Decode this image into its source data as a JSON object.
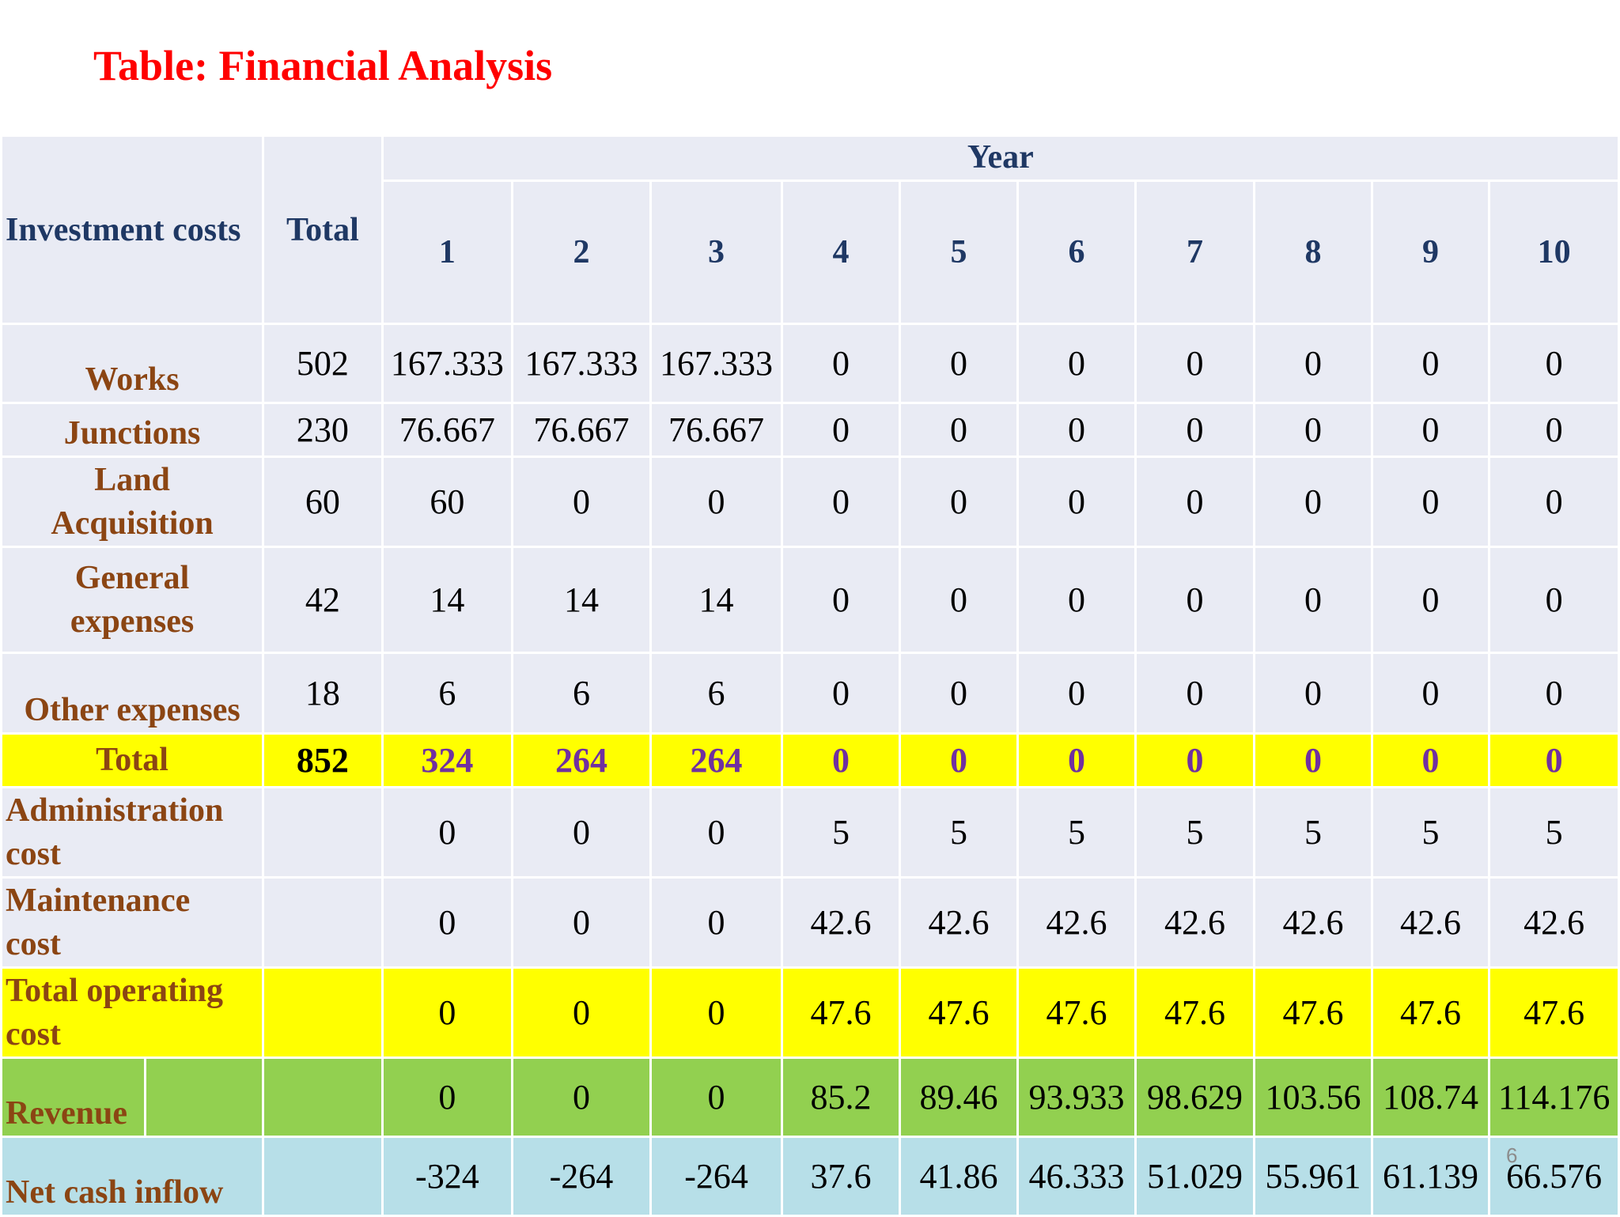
{
  "title": "Table: Financial Analysis",
  "header": {
    "investment_costs": "Investment costs",
    "total": "Total",
    "year": "Year",
    "years": [
      "1",
      "2",
      "3",
      "4",
      "5",
      "6",
      "7",
      "8",
      "9",
      "10"
    ]
  },
  "rows": {
    "works": {
      "label": "Works",
      "total": "502",
      "values": [
        "167.333",
        "167.333",
        "167.333",
        "0",
        "0",
        "0",
        "0",
        "0",
        "0",
        "0"
      ]
    },
    "junctions": {
      "label": "Junctions",
      "total": "230",
      "values": [
        "76.667",
        "76.667",
        "76.667",
        "0",
        "0",
        "0",
        "0",
        "0",
        "0",
        "0"
      ]
    },
    "land": {
      "label_line1": "Land",
      "label_line2": "Acquisition",
      "total": "60",
      "values": [
        "60",
        "0",
        "0",
        "0",
        "0",
        "0",
        "0",
        "0",
        "0",
        "0"
      ]
    },
    "general": {
      "label_line1": "General",
      "label_line2": "expenses",
      "total": "42",
      "values": [
        "14",
        "14",
        "14",
        "0",
        "0",
        "0",
        "0",
        "0",
        "0",
        "0"
      ]
    },
    "other": {
      "label": "Other expenses",
      "total": "18",
      "values": [
        "6",
        "6",
        "6",
        "0",
        "0",
        "0",
        "0",
        "0",
        "0",
        "0"
      ]
    },
    "total": {
      "label": "Total",
      "total": "852",
      "values": [
        "324",
        "264",
        "264",
        "0",
        "0",
        "0",
        "0",
        "0",
        "0",
        "0"
      ]
    },
    "administration": {
      "label_line1": "Administration",
      "label_line2": "cost",
      "values": [
        "0",
        "0",
        "0",
        "5",
        "5",
        "5",
        "5",
        "5",
        "5",
        "5"
      ]
    },
    "maintenance": {
      "label_line1": "Maintenance",
      "label_line2": "cost",
      "values": [
        "0",
        "0",
        "0",
        "42.6",
        "42.6",
        "42.6",
        "42.6",
        "42.6",
        "42.6",
        "42.6"
      ]
    },
    "total_operating": {
      "label_line1": "Total operating",
      "label_line2": "cost",
      "values": [
        "0",
        "0",
        "0",
        "47.6",
        "47.6",
        "47.6",
        "47.6",
        "47.6",
        "47.6",
        "47.6"
      ]
    },
    "revenue": {
      "label": "Revenue",
      "values": [
        "0",
        "0",
        "0",
        "85.2",
        "89.46",
        "93.933",
        "98.629",
        "103.56",
        "108.74",
        "114.176"
      ]
    },
    "net_cash_inflow": {
      "label": "Net cash inflow",
      "values": [
        "-324",
        "-264",
        "-264",
        "37.6",
        "41.86",
        "46.333",
        "51.029",
        "55.961",
        "61.139",
        "66.576"
      ]
    }
  },
  "page_number": "6",
  "colors": {
    "title": "#ff0000",
    "header_text": "#1f3864",
    "row_label": "#8b4513",
    "cell_background": "#e9ebf4",
    "total_highlight": "#ffff00",
    "total_values": "#7030a0",
    "revenue_row": "#92d050",
    "net_cash_row": "#b7dfe8"
  }
}
